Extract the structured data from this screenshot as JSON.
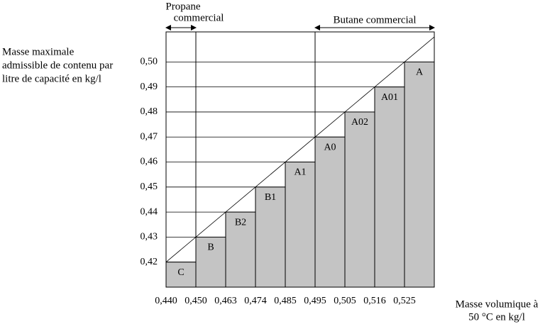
{
  "chart_data": {
    "type": "step-bar",
    "y_label": [
      "Masse maximale",
      "admissible de contenu par",
      "litre de capacité en kg/l"
    ],
    "x_label": [
      "Masse volumique à",
      "50 °C en kg/l"
    ],
    "annotations": [
      "Propane",
      "commercial",
      "Butane commercial"
    ],
    "categories": [
      "C",
      "B",
      "B2",
      "B1",
      "A1",
      "A0",
      "A02",
      "A01",
      "A"
    ],
    "values": [
      0.42,
      0.43,
      0.44,
      0.45,
      0.46,
      0.47,
      0.48,
      0.49,
      0.5
    ],
    "color": "#c4c4c4",
    "ylim": [
      0.41,
      0.512
    ],
    "yticks": [
      {
        "value": 0.42,
        "label": "0,42"
      },
      {
        "value": 0.43,
        "label": "0,43"
      },
      {
        "value": 0.44,
        "label": "0,44"
      },
      {
        "value": 0.45,
        "label": "0,45"
      },
      {
        "value": 0.46,
        "label": "0,46"
      },
      {
        "value": 0.47,
        "label": "0,47"
      },
      {
        "value": 0.48,
        "label": "0,48"
      },
      {
        "value": 0.49,
        "label": "0,49"
      },
      {
        "value": 0.5,
        "label": "0,50"
      }
    ],
    "xticks": [
      {
        "value": 0.44,
        "label": "0,440"
      },
      {
        "value": 0.45,
        "label": "0,450"
      },
      {
        "value": 0.463,
        "label": "0,463"
      },
      {
        "value": 0.474,
        "label": "0,474"
      },
      {
        "value": 0.485,
        "label": "0,485"
      },
      {
        "value": 0.495,
        "label": "0,495"
      },
      {
        "value": 0.505,
        "label": "0,505"
      },
      {
        "value": 0.516,
        "label": "0,516"
      },
      {
        "value": 0.525,
        "label": "0,525"
      }
    ],
    "grid": true
  }
}
